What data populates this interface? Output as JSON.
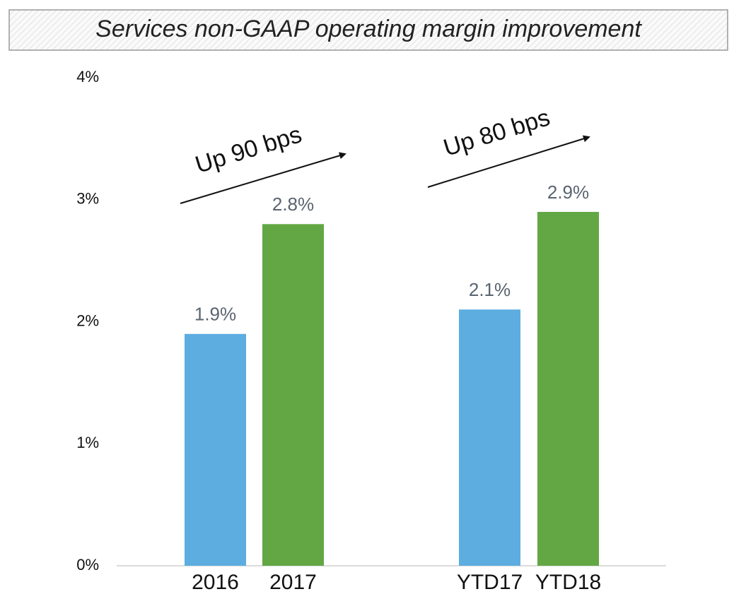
{
  "chart_data": {
    "type": "bar",
    "title": "Services non-GAAP operating margin improvement",
    "categories": [
      "2016",
      "2017",
      "YTD17",
      "YTD18"
    ],
    "values": [
      1.9,
      2.8,
      2.1,
      2.9
    ],
    "value_labels": [
      "1.9%",
      "2.8%",
      "2.1%",
      "2.9%"
    ],
    "colors": [
      "#5dade0",
      "#62a744",
      "#5dade0",
      "#62a744"
    ],
    "ylim": [
      0,
      4
    ],
    "yticks": [
      {
        "value": 0,
        "label": "0%"
      },
      {
        "value": 1,
        "label": "1%"
      },
      {
        "value": 2,
        "label": "2%"
      },
      {
        "value": 3,
        "label": "3%"
      },
      {
        "value": 4,
        "label": "4%"
      }
    ],
    "grid": false,
    "annotations": [
      "Up 90 bps",
      "Up 80 bps"
    ]
  }
}
